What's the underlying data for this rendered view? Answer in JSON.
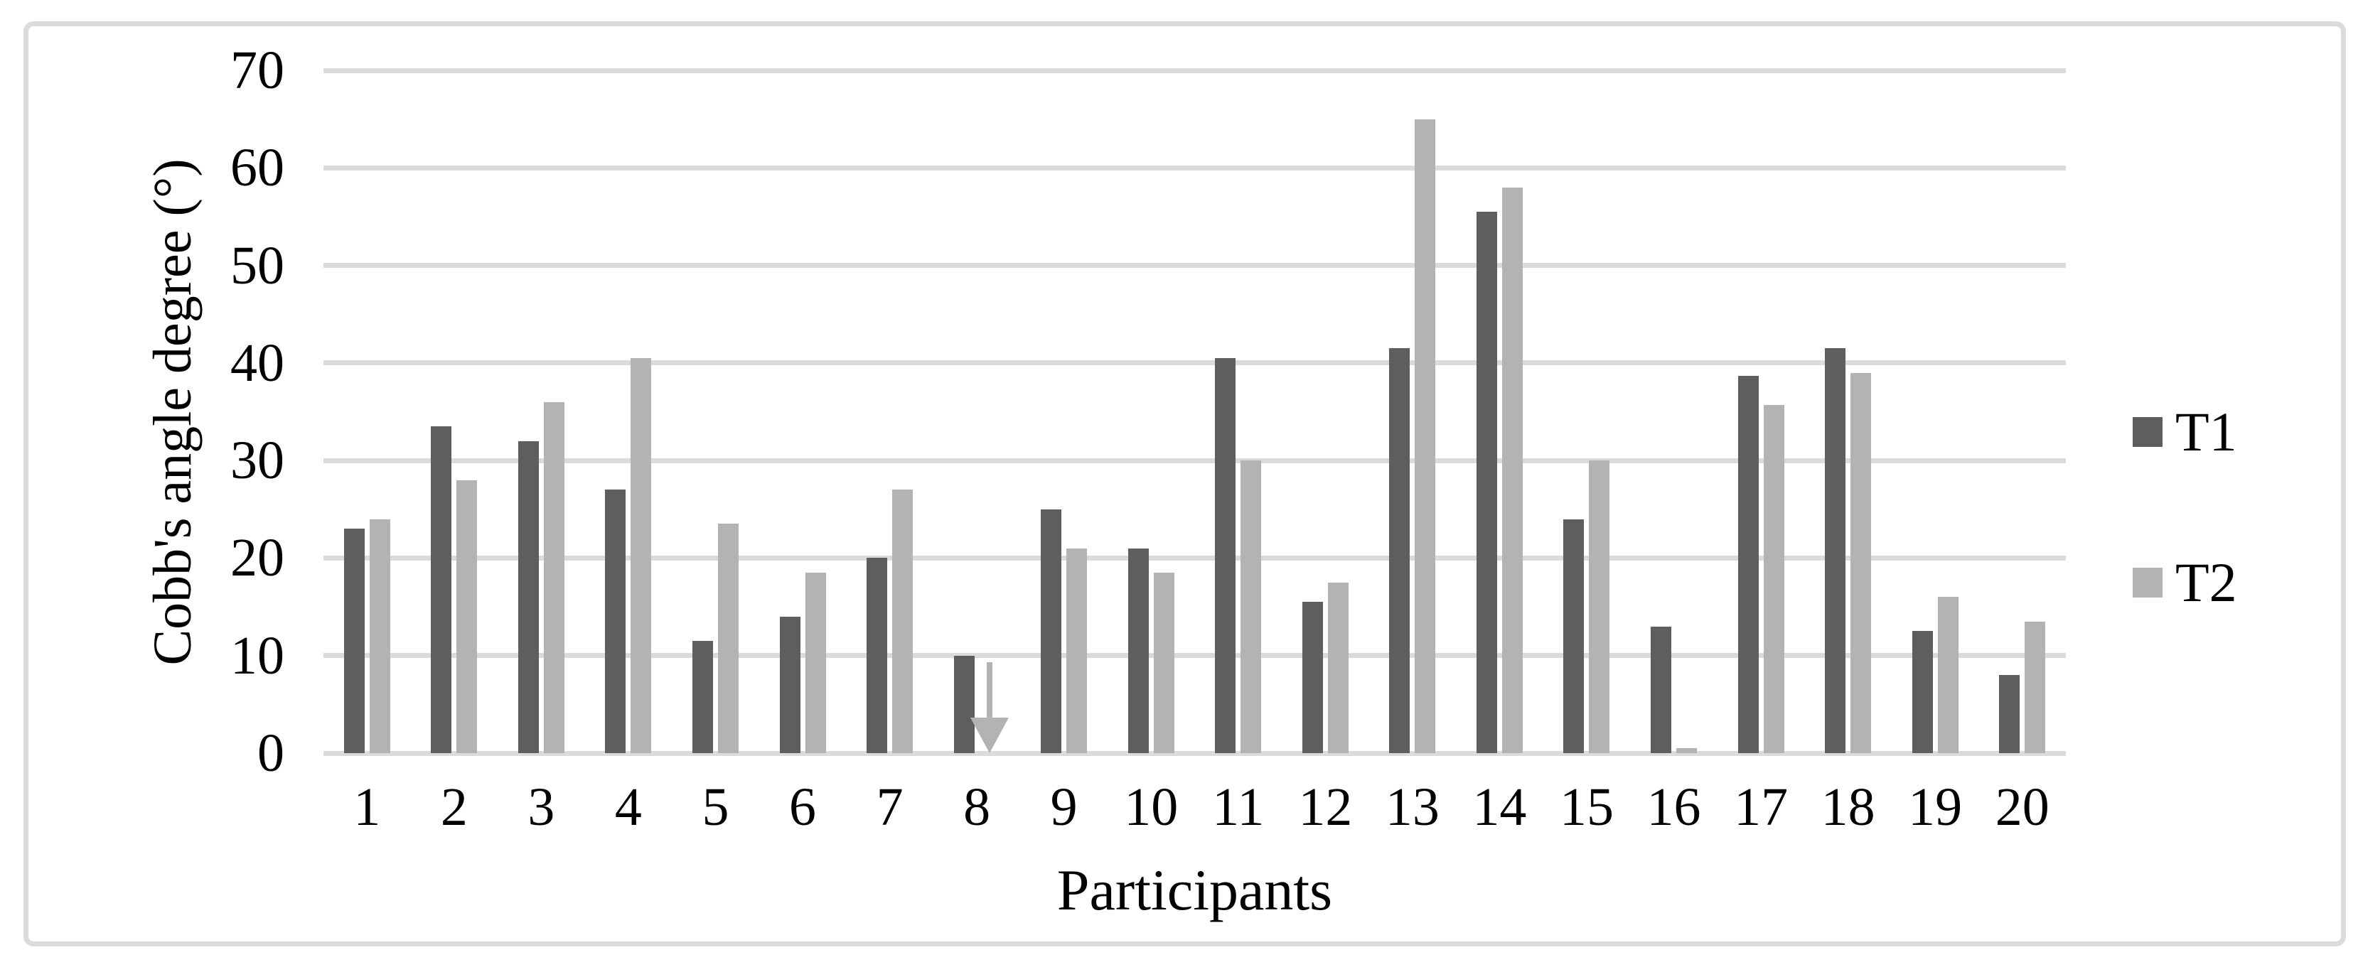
{
  "figure": {
    "background": "#FFFFFF",
    "border_color": "#DBDBDB",
    "y_axis": {
      "title": "Cobb's angle degree (°)",
      "tick_labels": [
        "0",
        "10",
        "20",
        "30",
        "40",
        "50",
        "60",
        "70"
      ],
      "min": 0,
      "max": 70,
      "gridline_color": "#DBDBDB"
    },
    "x_axis": {
      "title": "Participants",
      "tick_labels": [
        "1",
        "2",
        "3",
        "4",
        "5",
        "6",
        "7",
        "8",
        "9",
        "10",
        "11",
        "12",
        "13",
        "14",
        "15",
        "16",
        "17",
        "18",
        "19",
        "20"
      ]
    },
    "legend": [
      {
        "label": "T1",
        "color": "#5E5E5E"
      },
      {
        "label": "T2",
        "color": "#B3B3B3"
      }
    ]
  },
  "chart_data": {
    "type": "bar",
    "title": "",
    "categories": [
      "1",
      "2",
      "3",
      "4",
      "5",
      "6",
      "7",
      "8",
      "9",
      "10",
      "11",
      "12",
      "13",
      "14",
      "15",
      "16",
      "17",
      "18",
      "19",
      "20"
    ],
    "series": [
      {
        "name": "T1",
        "color": "#5E5E5E",
        "values": [
          23,
          33.5,
          32,
          27,
          11.5,
          14,
          20,
          10,
          25,
          21,
          40.5,
          15.5,
          41.5,
          55.5,
          24,
          13,
          38.7,
          41.5,
          12.5,
          8
        ]
      },
      {
        "name": "T2",
        "color": "#B3B3B3",
        "values": [
          24,
          28,
          36,
          40.5,
          23.5,
          18.5,
          27,
          null,
          21,
          18.5,
          30,
          17.5,
          65,
          58,
          30,
          0.5,
          35.7,
          39,
          16,
          13.5
        ]
      }
    ],
    "annotations": [
      {
        "category": "8",
        "series": "T2",
        "shape": "down-arrow",
        "color": "#B3B3B3",
        "from_value": 9.3,
        "to_value": 0
      }
    ],
    "xlabel": "Participants",
    "ylabel": "Cobb's angle degree (°)",
    "ylim": [
      0,
      70
    ],
    "grid": true,
    "legend_position": "right"
  }
}
